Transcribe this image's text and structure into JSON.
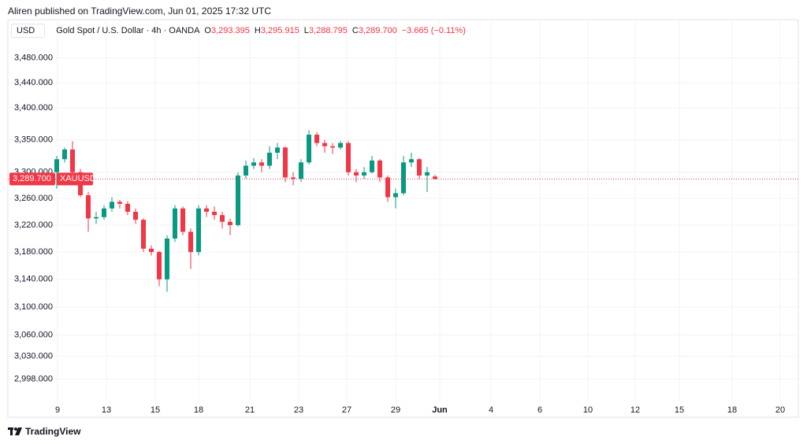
{
  "header": {
    "published": "Aliren published on TradingView.com, Jun 01, 2025 17:32 UTC",
    "currency": "USD"
  },
  "footer": {
    "brand": "TradingView"
  },
  "chart_data": {
    "type": "candlestick",
    "legend": {
      "symbol": "Gold Spot / U.S. Dollar · 4h · OANDA",
      "fields": [
        {
          "key": "O",
          "value": "3,293.395"
        },
        {
          "key": "H",
          "value": "3,295.915"
        },
        {
          "key": "L",
          "value": "3,288.795"
        },
        {
          "key": "C",
          "value": "3,289.700"
        }
      ],
      "change": "−3.665 (−0.11%)"
    },
    "up_color": "#089981",
    "down_color": "#f23645",
    "log_scale": true,
    "grid": true,
    "ohlc": [
      [
        3300,
        3325,
        3275,
        3320
      ],
      [
        3320,
        3338,
        3315,
        3335
      ],
      [
        3335,
        3348,
        3295,
        3300
      ],
      [
        3300,
        3305,
        3262,
        3265
      ],
      [
        3265,
        3270,
        3210,
        3230
      ],
      [
        3230,
        3240,
        3222,
        3232
      ],
      [
        3232,
        3250,
        3228,
        3245
      ],
      [
        3245,
        3262,
        3240,
        3255
      ],
      [
        3255,
        3258,
        3245,
        3252
      ],
      [
        3252,
        3256,
        3235,
        3240
      ],
      [
        3240,
        3245,
        3222,
        3228
      ],
      [
        3228,
        3230,
        3180,
        3185
      ],
      [
        3185,
        3190,
        3175,
        3180
      ],
      [
        3180,
        3182,
        3130,
        3140
      ],
      [
        3140,
        3205,
        3122,
        3200
      ],
      [
        3200,
        3250,
        3195,
        3245
      ],
      [
        3245,
        3248,
        3205,
        3210
      ],
      [
        3210,
        3215,
        3155,
        3180
      ],
      [
        3180,
        3250,
        3175,
        3245
      ],
      [
        3245,
        3250,
        3232,
        3240
      ],
      [
        3240,
        3248,
        3228,
        3235
      ],
      [
        3235,
        3240,
        3215,
        3225
      ],
      [
        3225,
        3230,
        3205,
        3220
      ],
      [
        3220,
        3300,
        3218,
        3295
      ],
      [
        3295,
        3318,
        3290,
        3310
      ],
      [
        3310,
        3322,
        3305,
        3315
      ],
      [
        3315,
        3320,
        3300,
        3310
      ],
      [
        3310,
        3340,
        3305,
        3330
      ],
      [
        3330,
        3345,
        3320,
        3338
      ],
      [
        3338,
        3340,
        3285,
        3292
      ],
      [
        3292,
        3300,
        3280,
        3290
      ],
      [
        3290,
        3320,
        3285,
        3315
      ],
      [
        3315,
        3365,
        3312,
        3358
      ],
      [
        3358,
        3362,
        3340,
        3345
      ],
      [
        3345,
        3350,
        3330,
        3340
      ],
      [
        3340,
        3345,
        3328,
        3338
      ],
      [
        3338,
        3348,
        3335,
        3345
      ],
      [
        3345,
        3348,
        3295,
        3300
      ],
      [
        3300,
        3305,
        3285,
        3295
      ],
      [
        3295,
        3308,
        3290,
        3300
      ],
      [
        3300,
        3325,
        3298,
        3318
      ],
      [
        3318,
        3320,
        3285,
        3292
      ],
      [
        3292,
        3295,
        3255,
        3262
      ],
      [
        3262,
        3275,
        3245,
        3268
      ],
      [
        3268,
        3325,
        3265,
        3315
      ],
      [
        3315,
        3330,
        3308,
        3320
      ],
      [
        3320,
        3322,
        3290,
        3295
      ],
      [
        3295,
        3308,
        3270,
        3300
      ],
      [
        3293.395,
        3295.915,
        3288.795,
        3289.7
      ]
    ],
    "xlim": [
      -6.2,
      94.1
    ],
    "xticks": [
      {
        "value": 0.1,
        "label": "9"
      },
      {
        "value": 6.3,
        "label": "13"
      },
      {
        "value": 12.5,
        "label": "15"
      },
      {
        "value": 18,
        "label": "18"
      },
      {
        "value": 24.5,
        "label": "21"
      },
      {
        "value": 30.7,
        "label": "23"
      },
      {
        "value": 36.8,
        "label": "27"
      },
      {
        "value": 43,
        "label": "29"
      },
      {
        "value": 48.6,
        "label": "Jun"
      },
      {
        "value": 55.1,
        "label": "4"
      },
      {
        "value": 61.3,
        "label": "6"
      },
      {
        "value": 67.4,
        "label": "10"
      },
      {
        "value": 73.4,
        "label": "12"
      },
      {
        "value": 79,
        "label": "15"
      },
      {
        "value": 85.7,
        "label": "18"
      },
      {
        "value": 91.8,
        "label": "20"
      }
    ],
    "ylim": [
      2967,
      3542
    ],
    "yticks": [
      {
        "value": 3480,
        "label": "3,480.000"
      },
      {
        "value": 3440,
        "label": "3,440.000"
      },
      {
        "value": 3400,
        "label": "3,400.000"
      },
      {
        "value": 3350,
        "label": "3,350.000"
      },
      {
        "value": 3300,
        "label": "3,300.000"
      },
      {
        "value": 3260,
        "label": "3,260.000"
      },
      {
        "value": 3220,
        "label": "3,220.000"
      },
      {
        "value": 3180,
        "label": "3,180.000"
      },
      {
        "value": 3140,
        "label": "3,140.000"
      },
      {
        "value": 3100,
        "label": "3,100.000"
      },
      {
        "value": 3060,
        "label": "3,060.000"
      },
      {
        "value": 3030,
        "label": "3,030.000"
      },
      {
        "value": 2998,
        "label": "2,998.000"
      }
    ],
    "last_price": {
      "value": 3289.7,
      "label": "3,289.700",
      "symbol": "XAUUSD"
    }
  }
}
